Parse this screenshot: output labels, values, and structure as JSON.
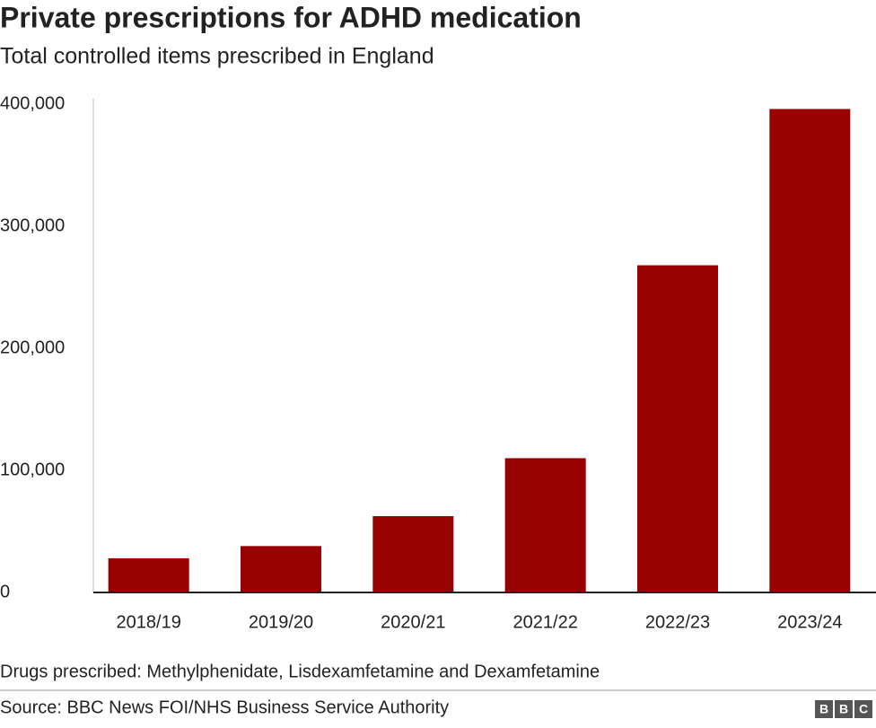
{
  "chart_data": {
    "type": "bar",
    "title": "Private prescriptions for ADHD medication",
    "subtitle": "Total controlled items prescribed in England",
    "categories": [
      "2018/19",
      "2019/20",
      "2020/21",
      "2021/22",
      "2022/23",
      "2023/24"
    ],
    "values": [
      28000,
      38000,
      62500,
      110000,
      268000,
      396000
    ],
    "color": "#990000",
    "ylim": [
      0,
      400000
    ],
    "yticks": [
      0,
      {
        "value": 100000,
        "label": "100,000"
      },
      {
        "value": 200000,
        "label": "200,000"
      },
      {
        "value": 300000,
        "label": "300,000"
      },
      {
        "value": 400000,
        "label": "400,000"
      }
    ],
    "grid": false,
    "note": "Drugs prescribed: Methylphenidate, Lisdexamfetamine and Dexamfetamine",
    "source": "Source: BBC News FOI/NHS Business Service Authority",
    "logo": [
      "B",
      "B",
      "C"
    ]
  }
}
